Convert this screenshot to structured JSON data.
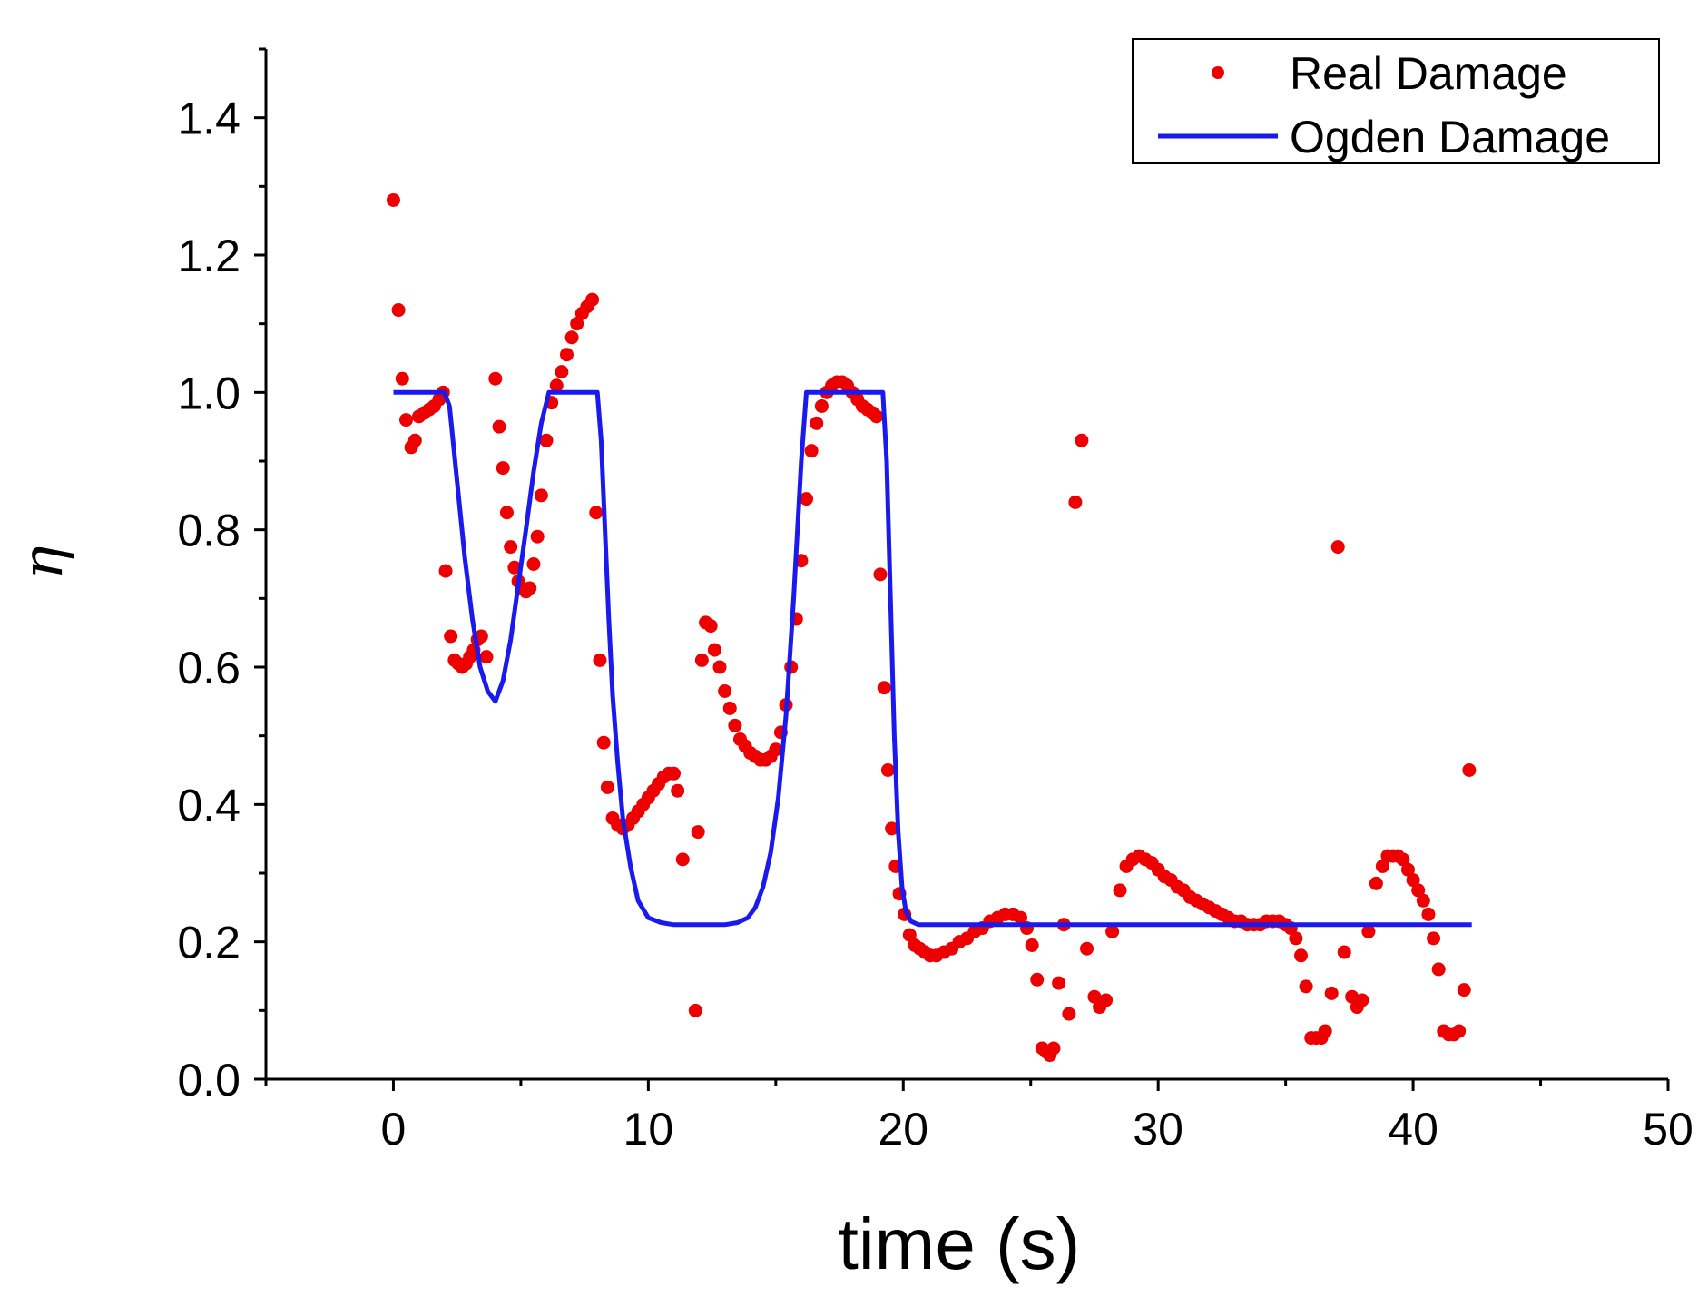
{
  "chart_data": {
    "type": "scatter",
    "title": "",
    "xlabel": "time (s)",
    "ylabel": "η",
    "xlim": [
      -5,
      50
    ],
    "ylim": [
      0,
      1.5
    ],
    "xticks": [
      "0",
      "10",
      "20",
      "30",
      "40",
      "50"
    ],
    "yticks": [
      "0.0",
      "0.2",
      "0.4",
      "0.6",
      "0.8",
      "1.0",
      "1.2",
      "1.4"
    ],
    "xtick_values": [
      0,
      10,
      20,
      30,
      40,
      50
    ],
    "ytick_values": [
      0,
      0.2,
      0.4,
      0.6,
      0.8,
      1.0,
      1.2,
      1.4
    ],
    "grid": false,
    "legend_position": "top-right",
    "series": [
      {
        "name": "Real Damage",
        "kind": "scatter",
        "color": "#ee0000",
        "points": [
          [
            0.0,
            1.28
          ],
          [
            0.2,
            1.12
          ],
          [
            0.35,
            1.02
          ],
          [
            0.5,
            0.96
          ],
          [
            0.7,
            0.92
          ],
          [
            0.85,
            0.93
          ],
          [
            1.0,
            0.965
          ],
          [
            1.2,
            0.97
          ],
          [
            1.4,
            0.975
          ],
          [
            1.6,
            0.98
          ],
          [
            1.8,
            0.99
          ],
          [
            1.95,
            1.0
          ],
          [
            2.05,
            0.74
          ],
          [
            2.25,
            0.645
          ],
          [
            2.4,
            0.61
          ],
          [
            2.55,
            0.605
          ],
          [
            2.7,
            0.6
          ],
          [
            2.85,
            0.605
          ],
          [
            3.0,
            0.615
          ],
          [
            3.15,
            0.625
          ],
          [
            3.3,
            0.64
          ],
          [
            3.45,
            0.645
          ],
          [
            3.65,
            0.615
          ],
          [
            4.0,
            1.02
          ],
          [
            4.15,
            0.95
          ],
          [
            4.3,
            0.89
          ],
          [
            4.45,
            0.825
          ],
          [
            4.6,
            0.775
          ],
          [
            4.75,
            0.745
          ],
          [
            4.9,
            0.725
          ],
          [
            5.05,
            0.715
          ],
          [
            5.2,
            0.71
          ],
          [
            5.35,
            0.715
          ],
          [
            5.5,
            0.75
          ],
          [
            5.65,
            0.79
          ],
          [
            5.8,
            0.85
          ],
          [
            6.0,
            0.93
          ],
          [
            6.2,
            0.985
          ],
          [
            6.4,
            1.01
          ],
          [
            6.6,
            1.03
          ],
          [
            6.8,
            1.055
          ],
          [
            7.0,
            1.08
          ],
          [
            7.2,
            1.1
          ],
          [
            7.4,
            1.115
          ],
          [
            7.6,
            1.125
          ],
          [
            7.8,
            1.135
          ],
          [
            7.95,
            0.825
          ],
          [
            8.1,
            0.61
          ],
          [
            8.25,
            0.49
          ],
          [
            8.4,
            0.425
          ],
          [
            8.6,
            0.38
          ],
          [
            8.8,
            0.37
          ],
          [
            9.0,
            0.365
          ],
          [
            9.2,
            0.37
          ],
          [
            9.4,
            0.38
          ],
          [
            9.6,
            0.39
          ],
          [
            9.8,
            0.4
          ],
          [
            10.0,
            0.41
          ],
          [
            10.2,
            0.42
          ],
          [
            10.4,
            0.43
          ],
          [
            10.6,
            0.44
          ],
          [
            10.8,
            0.445
          ],
          [
            11.0,
            0.445
          ],
          [
            11.15,
            0.42
          ],
          [
            11.35,
            0.32
          ],
          [
            11.85,
            0.1
          ],
          [
            11.95,
            0.36
          ],
          [
            12.1,
            0.61
          ],
          [
            12.25,
            0.665
          ],
          [
            12.45,
            0.66
          ],
          [
            12.6,
            0.625
          ],
          [
            12.8,
            0.6
          ],
          [
            13.0,
            0.565
          ],
          [
            13.2,
            0.54
          ],
          [
            13.4,
            0.515
          ],
          [
            13.6,
            0.495
          ],
          [
            13.8,
            0.485
          ],
          [
            14.0,
            0.475
          ],
          [
            14.2,
            0.47
          ],
          [
            14.4,
            0.465
          ],
          [
            14.6,
            0.465
          ],
          [
            14.8,
            0.47
          ],
          [
            15.0,
            0.48
          ],
          [
            15.2,
            0.505
          ],
          [
            15.4,
            0.545
          ],
          [
            15.6,
            0.6
          ],
          [
            15.8,
            0.67
          ],
          [
            16.0,
            0.755
          ],
          [
            16.2,
            0.845
          ],
          [
            16.4,
            0.915
          ],
          [
            16.6,
            0.955
          ],
          [
            16.8,
            0.98
          ],
          [
            17.0,
            1.0
          ],
          [
            17.2,
            1.01
          ],
          [
            17.4,
            1.015
          ],
          [
            17.6,
            1.015
          ],
          [
            17.8,
            1.01
          ],
          [
            18.0,
            1.0
          ],
          [
            18.2,
            0.99
          ],
          [
            18.4,
            0.98
          ],
          [
            18.6,
            0.975
          ],
          [
            18.8,
            0.97
          ],
          [
            18.95,
            0.965
          ],
          [
            19.1,
            0.735
          ],
          [
            19.25,
            0.57
          ],
          [
            19.4,
            0.45
          ],
          [
            19.55,
            0.365
          ],
          [
            19.7,
            0.31
          ],
          [
            19.85,
            0.27
          ],
          [
            20.05,
            0.24
          ],
          [
            20.25,
            0.21
          ],
          [
            20.45,
            0.195
          ],
          [
            20.65,
            0.19
          ],
          [
            20.85,
            0.185
          ],
          [
            21.05,
            0.18
          ],
          [
            21.3,
            0.18
          ],
          [
            21.6,
            0.185
          ],
          [
            21.9,
            0.19
          ],
          [
            22.2,
            0.2
          ],
          [
            22.5,
            0.205
          ],
          [
            22.8,
            0.215
          ],
          [
            23.1,
            0.22
          ],
          [
            23.4,
            0.23
          ],
          [
            23.7,
            0.235
          ],
          [
            24.0,
            0.24
          ],
          [
            24.3,
            0.24
          ],
          [
            24.6,
            0.235
          ],
          [
            24.85,
            0.22
          ],
          [
            25.05,
            0.195
          ],
          [
            25.25,
            0.145
          ],
          [
            25.45,
            0.045
          ],
          [
            25.6,
            0.04
          ],
          [
            25.75,
            0.035
          ],
          [
            25.9,
            0.045
          ],
          [
            26.1,
            0.14
          ],
          [
            26.3,
            0.225
          ],
          [
            26.5,
            0.095
          ],
          [
            26.75,
            0.84
          ],
          [
            27.0,
            0.93
          ],
          [
            27.2,
            0.19
          ],
          [
            27.5,
            0.12
          ],
          [
            27.7,
            0.105
          ],
          [
            27.95,
            0.115
          ],
          [
            28.2,
            0.215
          ],
          [
            28.5,
            0.275
          ],
          [
            28.75,
            0.31
          ],
          [
            29.0,
            0.32
          ],
          [
            29.25,
            0.325
          ],
          [
            29.5,
            0.32
          ],
          [
            29.75,
            0.315
          ],
          [
            30.0,
            0.305
          ],
          [
            30.25,
            0.295
          ],
          [
            30.5,
            0.29
          ],
          [
            30.75,
            0.28
          ],
          [
            31.0,
            0.275
          ],
          [
            31.25,
            0.265
          ],
          [
            31.5,
            0.26
          ],
          [
            31.75,
            0.255
          ],
          [
            32.0,
            0.25
          ],
          [
            32.25,
            0.245
          ],
          [
            32.5,
            0.24
          ],
          [
            32.75,
            0.235
          ],
          [
            33.0,
            0.23
          ],
          [
            33.25,
            0.23
          ],
          [
            33.5,
            0.225
          ],
          [
            33.75,
            0.225
          ],
          [
            34.0,
            0.225
          ],
          [
            34.25,
            0.23
          ],
          [
            34.5,
            0.23
          ],
          [
            34.75,
            0.23
          ],
          [
            35.0,
            0.225
          ],
          [
            35.2,
            0.22
          ],
          [
            35.4,
            0.205
          ],
          [
            35.6,
            0.18
          ],
          [
            35.8,
            0.135
          ],
          [
            36.0,
            0.06
          ],
          [
            36.2,
            0.06
          ],
          [
            36.4,
            0.06
          ],
          [
            36.55,
            0.07
          ],
          [
            36.8,
            0.125
          ],
          [
            37.05,
            0.775
          ],
          [
            37.3,
            0.185
          ],
          [
            37.6,
            0.12
          ],
          [
            37.8,
            0.105
          ],
          [
            38.0,
            0.115
          ],
          [
            38.25,
            0.215
          ],
          [
            38.55,
            0.285
          ],
          [
            38.8,
            0.31
          ],
          [
            39.0,
            0.325
          ],
          [
            39.2,
            0.325
          ],
          [
            39.4,
            0.325
          ],
          [
            39.6,
            0.32
          ],
          [
            39.8,
            0.305
          ],
          [
            40.0,
            0.29
          ],
          [
            40.2,
            0.275
          ],
          [
            40.4,
            0.26
          ],
          [
            40.6,
            0.24
          ],
          [
            40.8,
            0.205
          ],
          [
            41.0,
            0.16
          ],
          [
            41.2,
            0.07
          ],
          [
            41.4,
            0.065
          ],
          [
            41.6,
            0.065
          ],
          [
            41.8,
            0.07
          ],
          [
            42.0,
            0.13
          ],
          [
            42.2,
            0.45
          ]
        ]
      },
      {
        "name": "Ogden Damage",
        "kind": "line",
        "color": "#1a1aee",
        "points": [
          [
            0.0,
            1.0
          ],
          [
            2.0,
            1.0
          ],
          [
            2.2,
            0.98
          ],
          [
            2.5,
            0.87
          ],
          [
            2.8,
            0.76
          ],
          [
            3.1,
            0.67
          ],
          [
            3.4,
            0.6
          ],
          [
            3.7,
            0.565
          ],
          [
            4.0,
            0.55
          ],
          [
            4.3,
            0.58
          ],
          [
            4.6,
            0.64
          ],
          [
            4.9,
            0.72
          ],
          [
            5.2,
            0.8
          ],
          [
            5.5,
            0.885
          ],
          [
            5.8,
            0.955
          ],
          [
            6.1,
            1.0
          ],
          [
            8.0,
            1.0
          ],
          [
            8.15,
            0.93
          ],
          [
            8.3,
            0.8
          ],
          [
            8.45,
            0.67
          ],
          [
            8.6,
            0.56
          ],
          [
            8.8,
            0.46
          ],
          [
            9.0,
            0.38
          ],
          [
            9.3,
            0.31
          ],
          [
            9.6,
            0.26
          ],
          [
            10.0,
            0.235
          ],
          [
            10.5,
            0.228
          ],
          [
            11.0,
            0.225
          ],
          [
            12.0,
            0.225
          ],
          [
            13.0,
            0.225
          ],
          [
            13.5,
            0.228
          ],
          [
            13.9,
            0.235
          ],
          [
            14.2,
            0.25
          ],
          [
            14.5,
            0.28
          ],
          [
            14.8,
            0.33
          ],
          [
            15.1,
            0.41
          ],
          [
            15.4,
            0.53
          ],
          [
            15.7,
            0.7
          ],
          [
            16.0,
            0.9
          ],
          [
            16.2,
            1.0
          ],
          [
            19.2,
            1.0
          ],
          [
            19.35,
            0.9
          ],
          [
            19.5,
            0.7
          ],
          [
            19.65,
            0.5
          ],
          [
            19.8,
            0.36
          ],
          [
            19.95,
            0.28
          ],
          [
            20.1,
            0.245
          ],
          [
            20.3,
            0.23
          ],
          [
            20.6,
            0.225
          ],
          [
            25.0,
            0.225
          ],
          [
            30.0,
            0.225
          ],
          [
            35.0,
            0.225
          ],
          [
            40.0,
            0.225
          ],
          [
            42.3,
            0.225
          ]
        ]
      }
    ]
  }
}
